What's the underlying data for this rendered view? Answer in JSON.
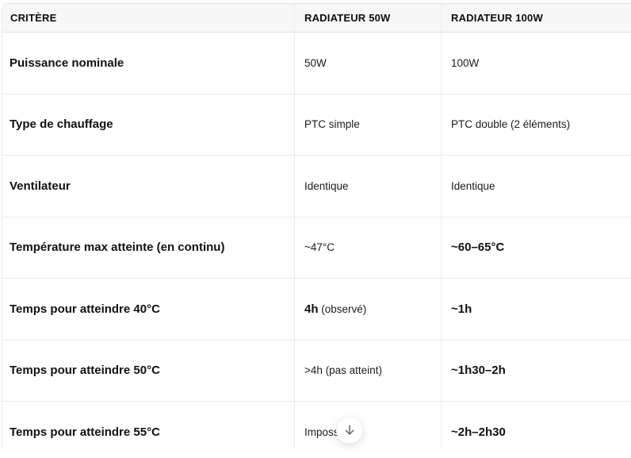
{
  "table": {
    "columns": [
      {
        "label": "CRITÈRE"
      },
      {
        "label": "RADIATEUR 50W"
      },
      {
        "label": "RADIATEUR 100W"
      }
    ],
    "rows": [
      {
        "criterion": "Puissance nominale",
        "radiateur_50w": [
          {
            "text": "50W",
            "bold": false
          }
        ],
        "radiateur_100w": [
          {
            "text": "100W",
            "bold": false
          }
        ]
      },
      {
        "criterion": "Type de chauffage",
        "radiateur_50w": [
          {
            "text": "PTC simple",
            "bold": false
          }
        ],
        "radiateur_100w": [
          {
            "text": "PTC double (2 éléments)",
            "bold": false
          }
        ]
      },
      {
        "criterion": "Ventilateur",
        "radiateur_50w": [
          {
            "text": "Identique",
            "bold": false
          }
        ],
        "radiateur_100w": [
          {
            "text": "Identique",
            "bold": false
          }
        ]
      },
      {
        "criterion": "Température max atteinte (en continu)",
        "radiateur_50w": [
          {
            "text": "~47°C",
            "bold": false
          }
        ],
        "radiateur_100w": [
          {
            "text": "~60–65°C",
            "bold": true
          }
        ]
      },
      {
        "criterion": "Temps pour atteindre 40°C",
        "radiateur_50w": [
          {
            "text": "4h",
            "bold": true
          },
          {
            "text": " (observé)",
            "bold": false
          }
        ],
        "radiateur_100w": [
          {
            "text": "~1h",
            "bold": true
          }
        ]
      },
      {
        "criterion": "Temps pour atteindre 50°C",
        "radiateur_50w": [
          {
            "text": ">4h (pas atteint)",
            "bold": false
          }
        ],
        "radiateur_100w": [
          {
            "text": "~1h30–2h",
            "bold": true
          }
        ]
      },
      {
        "criterion": "Temps pour atteindre 55°C",
        "radiateur_50w": [
          {
            "text": "Imposs",
            "bold": false,
            "truncated": true
          }
        ],
        "radiateur_100w": [
          {
            "text": "~2h–2h30",
            "bold": true
          }
        ]
      }
    ]
  },
  "scroll_button": {
    "icon": "arrow-down-icon",
    "glyph": "↓"
  },
  "colors": {
    "header_background": "#f7f7f8",
    "border": "#eaeaed",
    "text": "#0d0d0d",
    "arrow": "#676767"
  }
}
